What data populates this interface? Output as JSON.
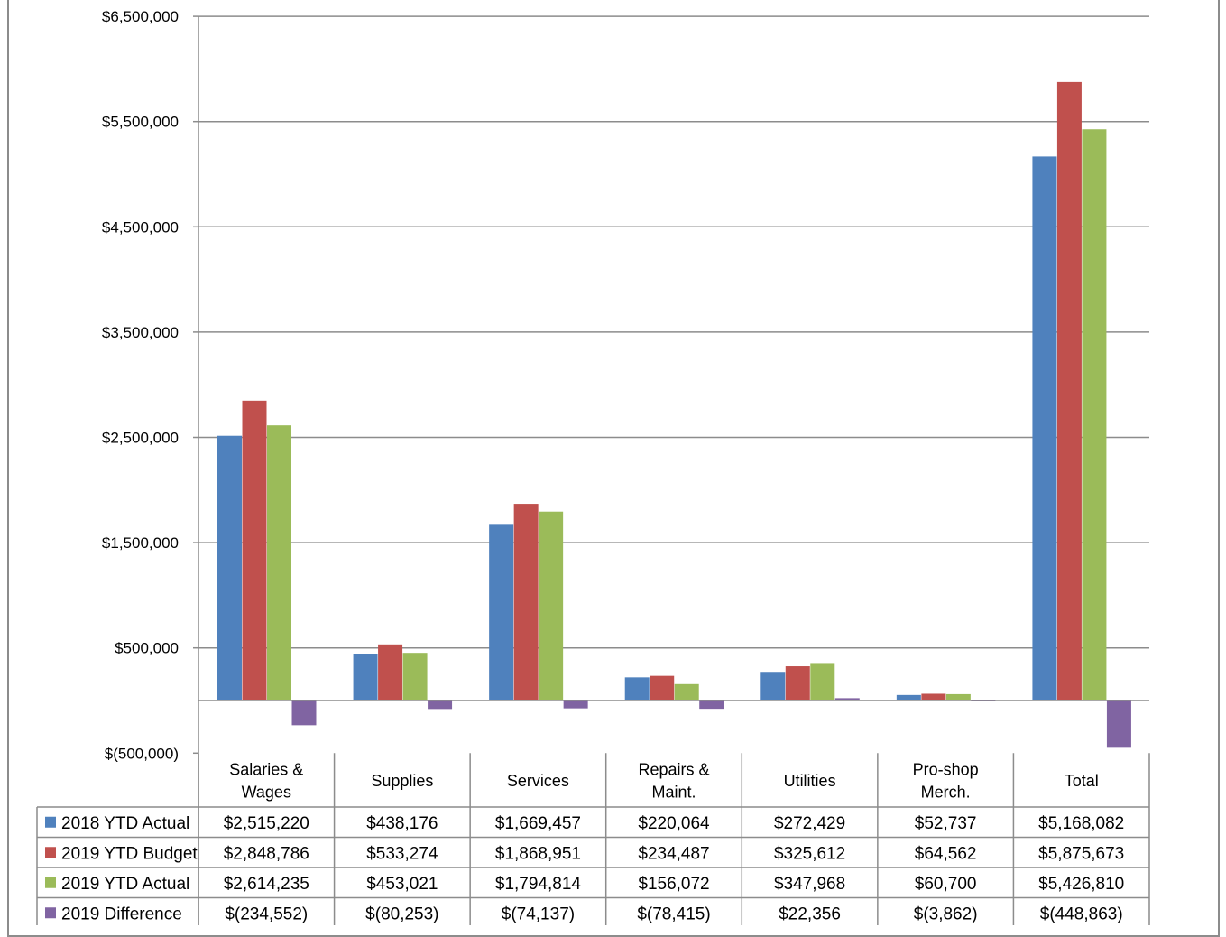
{
  "chart_data": {
    "type": "bar",
    "title": "",
    "xlabel": "",
    "ylabel": "",
    "ylim": [
      -500000,
      6500000
    ],
    "y_ticks": [
      -500000,
      500000,
      1500000,
      2500000,
      3500000,
      4500000,
      5500000,
      6500000
    ],
    "y_tick_labels": [
      "$(500,000)",
      "$500,000",
      "$1,500,000",
      "$2,500,000",
      "$3,500,000",
      "$4,500,000",
      "$5,500,000",
      "$6,500,000"
    ],
    "grid": true,
    "legend": "data-table",
    "categories": [
      [
        "Salaries &",
        "Wages"
      ],
      [
        "Supplies"
      ],
      [
        "Services"
      ],
      [
        "Repairs &",
        "Maint."
      ],
      [
        "Utilities"
      ],
      [
        "Pro-shop",
        "Merch."
      ],
      [
        "Total"
      ]
    ],
    "series": [
      {
        "name": "2018 YTD Actual",
        "color": "#4f81bd",
        "values": [
          2515220,
          438176,
          1669457,
          220064,
          272429,
          52737,
          5168082
        ],
        "labels": [
          "$2,515,220",
          "$438,176",
          "$1,669,457",
          "$220,064",
          "$272,429",
          "$52,737",
          "$5,168,082"
        ]
      },
      {
        "name": "2019 YTD Budget",
        "color": "#c0504d",
        "values": [
          2848786,
          533274,
          1868951,
          234487,
          325612,
          64562,
          5875673
        ],
        "labels": [
          "$2,848,786",
          "$533,274",
          "$1,868,951",
          "$234,487",
          "$325,612",
          "$64,562",
          "$5,875,673"
        ]
      },
      {
        "name": "2019 YTD Actual",
        "color": "#9bbb59",
        "values": [
          2614235,
          453021,
          1794814,
          156072,
          347968,
          60700,
          5426810
        ],
        "labels": [
          "$2,614,235",
          "$453,021",
          "$1,794,814",
          "$156,072",
          "$347,968",
          "$60,700",
          "$5,426,810"
        ]
      },
      {
        "name": "2019 Difference",
        "color": "#8064a2",
        "values": [
          -234552,
          -80253,
          -74137,
          -78415,
          22356,
          -3862,
          -448863
        ],
        "labels": [
          "$(234,552)",
          "$(80,253)",
          "$(74,137)",
          "$(78,415)",
          "$22,356",
          "$(3,862)",
          "$(448,863)"
        ]
      }
    ]
  }
}
